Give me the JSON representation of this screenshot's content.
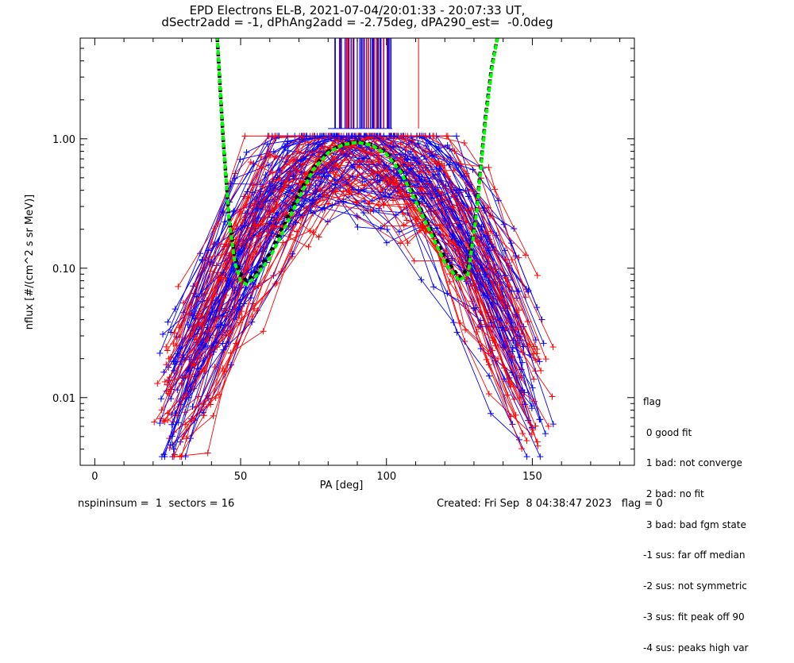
{
  "chart_data": {
    "type": "scatter",
    "title_line1": "EPD Electrons EL-B, 2021-07-04/20:01:33 - 20:07:33 UT,",
    "title_line2": "dSectr2add = -1, dPhAng2add = -2.75deg, dPA290_est=  -0.0deg",
    "xlabel": "PA [deg]",
    "ylabel": "nflux [#/(cm^2 s sr MeV)]",
    "xlim": [
      -5,
      185
    ],
    "ylim": [
      0.003,
      6
    ],
    "yscale": "log",
    "x_ticks": [
      0,
      50,
      100,
      150
    ],
    "x_tick_labels": [
      "0",
      "50",
      "100",
      "150"
    ],
    "y_ticks": [
      0.01,
      0.1,
      1.0
    ],
    "y_tick_labels": [
      "0.01",
      "0.10",
      "1.00"
    ],
    "series": [
      {
        "color": "#ff0000",
        "marker": "+",
        "description_color": "red"
      },
      {
        "color": "#0000ff",
        "marker": "+",
        "description_color": "blue"
      }
    ],
    "fit_curves": [
      {
        "color": "#000000",
        "style": "dashed",
        "x": [
          42,
          44,
          46,
          48,
          50,
          52,
          55,
          60,
          65,
          70,
          75,
          80,
          85,
          90,
          95,
          100,
          105,
          110,
          115,
          120,
          125,
          128,
          131,
          134,
          136,
          138
        ],
        "y": [
          6,
          1.0,
          0.25,
          0.12,
          0.09,
          0.08,
          0.09,
          0.13,
          0.22,
          0.38,
          0.6,
          0.8,
          0.9,
          0.95,
          0.9,
          0.78,
          0.57,
          0.35,
          0.2,
          0.12,
          0.085,
          0.1,
          0.3,
          1.5,
          3.5,
          6
        ]
      },
      {
        "color": "#00ff00",
        "style": "dashed",
        "x": [
          42,
          44,
          46,
          48,
          50,
          52,
          55,
          60,
          65,
          70,
          75,
          80,
          85,
          90,
          95,
          100,
          105,
          110,
          115,
          120,
          125,
          128,
          131,
          134,
          136,
          138
        ],
        "y": [
          6,
          1.0,
          0.24,
          0.11,
          0.08,
          0.075,
          0.085,
          0.12,
          0.2,
          0.35,
          0.58,
          0.78,
          0.9,
          0.94,
          0.89,
          0.76,
          0.55,
          0.33,
          0.19,
          0.11,
          0.08,
          0.09,
          0.28,
          1.4,
          3.3,
          6
        ]
      }
    ],
    "legend_title": "flag",
    "legend_entries": [
      " 0 good fit",
      " 1 bad: not converge",
      " 2 bad: no fit",
      " 3 bad: bad fgm state",
      "-1 sus: far off median",
      "-2 sus: not symmetric",
      "-3 sus: fit peak off 90",
      "-4 sus: peaks high var"
    ],
    "grid": false
  },
  "footer": {
    "left": "nspininsum =  1  sectors = 16",
    "right": "Created: Fri Sep  8 04:38:47 2023   flag = 0"
  }
}
